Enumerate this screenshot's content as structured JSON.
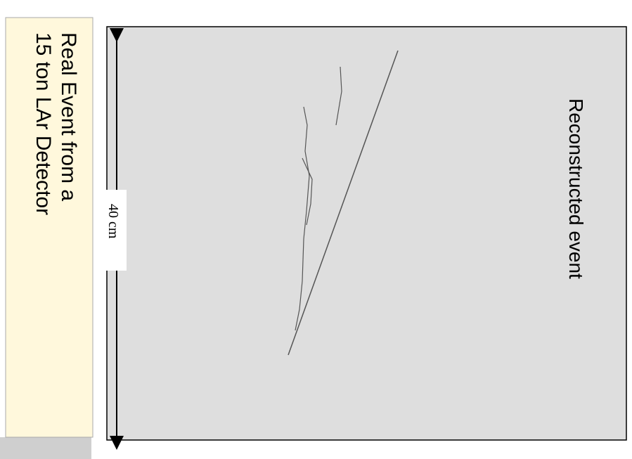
{
  "title_box": {
    "lines": [
      "Real Event from a",
      "15 ton LAr Detector"
    ]
  },
  "image": {
    "label": "Reconstructed event"
  },
  "scale": {
    "label": "40 cm"
  }
}
